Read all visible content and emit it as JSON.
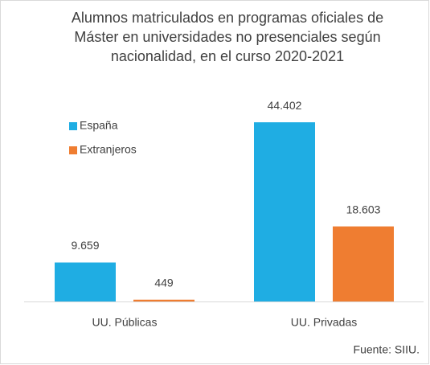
{
  "chart_data": {
    "type": "bar",
    "title": "Alumnos matriculados en programas oficiales de Máster en universidades no presenciales según nacionalidad, en el curso 2020-2021",
    "categories": [
      "UU. Públicas",
      "UU. Privadas"
    ],
    "series": [
      {
        "name": "España",
        "color": "#1fade3",
        "values": [
          9659,
          44402
        ],
        "value_labels": [
          "9.659",
          "44.402"
        ]
      },
      {
        "name": "Extranjeros",
        "color": "#ef7d31",
        "values": [
          449,
          18603
        ],
        "value_labels": [
          "449",
          "18.603"
        ]
      }
    ],
    "ylim": [
      0,
      50000
    ],
    "source": "Fuente: SIIU."
  }
}
